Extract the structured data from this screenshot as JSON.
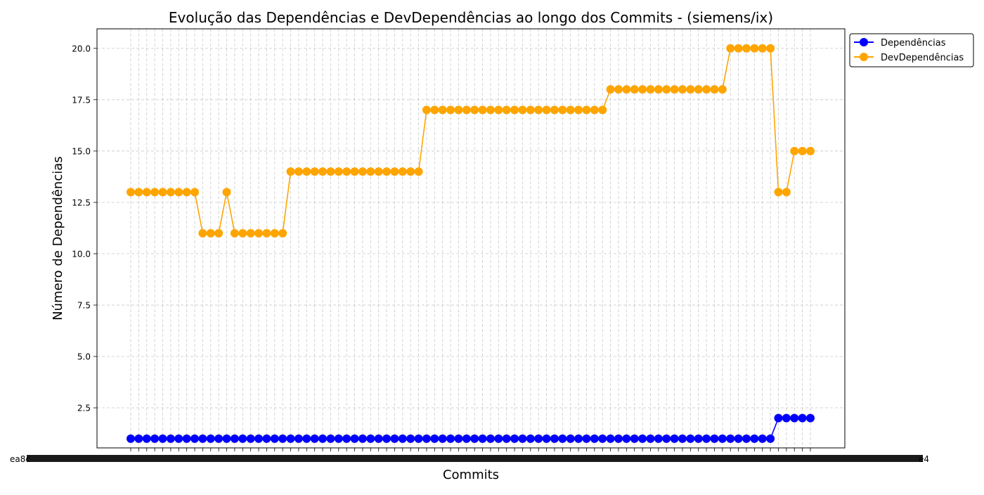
{
  "chart_data": {
    "type": "line",
    "title": "Evolução das Dependências e DevDependências ao longo dos Commits - (siemens/ix)",
    "xlabel": "Commits",
    "ylabel": "Número de Dependências",
    "ylim": [
      0.55,
      20.95
    ],
    "yticks": [
      "2.5",
      "5.0",
      "7.5",
      "10.0",
      "12.5",
      "15.0",
      "17.5",
      "20.0"
    ],
    "grid": true,
    "legend_position": "outside top-right",
    "x_tick_first": "ea8c",
    "x_tick_last": "e4",
    "x_count": 86,
    "series": [
      {
        "name": "Dependências",
        "color": "#0000ff",
        "values": [
          1,
          1,
          1,
          1,
          1,
          1,
          1,
          1,
          1,
          1,
          1,
          1,
          1,
          1,
          1,
          1,
          1,
          1,
          1,
          1,
          1,
          1,
          1,
          1,
          1,
          1,
          1,
          1,
          1,
          1,
          1,
          1,
          1,
          1,
          1,
          1,
          1,
          1,
          1,
          1,
          1,
          1,
          1,
          1,
          1,
          1,
          1,
          1,
          1,
          1,
          1,
          1,
          1,
          1,
          1,
          1,
          1,
          1,
          1,
          1,
          1,
          1,
          1,
          1,
          1,
          1,
          1,
          1,
          1,
          1,
          1,
          1,
          1,
          1,
          1,
          1,
          1,
          1,
          1,
          1,
          1,
          2,
          2,
          2,
          2,
          2
        ]
      },
      {
        "name": "DevDependências",
        "color": "#ffa500",
        "values": [
          13,
          13,
          13,
          13,
          13,
          13,
          13,
          13,
          13,
          11,
          11,
          11,
          13,
          11,
          11,
          11,
          11,
          11,
          11,
          11,
          14,
          14,
          14,
          14,
          14,
          14,
          14,
          14,
          14,
          14,
          14,
          14,
          14,
          14,
          14,
          14,
          14,
          17,
          17,
          17,
          17,
          17,
          17,
          17,
          17,
          17,
          17,
          17,
          17,
          17,
          17,
          17,
          17,
          17,
          17,
          17,
          17,
          17,
          17,
          17,
          18,
          18,
          18,
          18,
          18,
          18,
          18,
          18,
          18,
          18,
          18,
          18,
          18,
          18,
          18,
          20,
          20,
          20,
          20,
          20,
          20,
          13,
          13,
          15,
          15,
          15
        ]
      }
    ]
  }
}
